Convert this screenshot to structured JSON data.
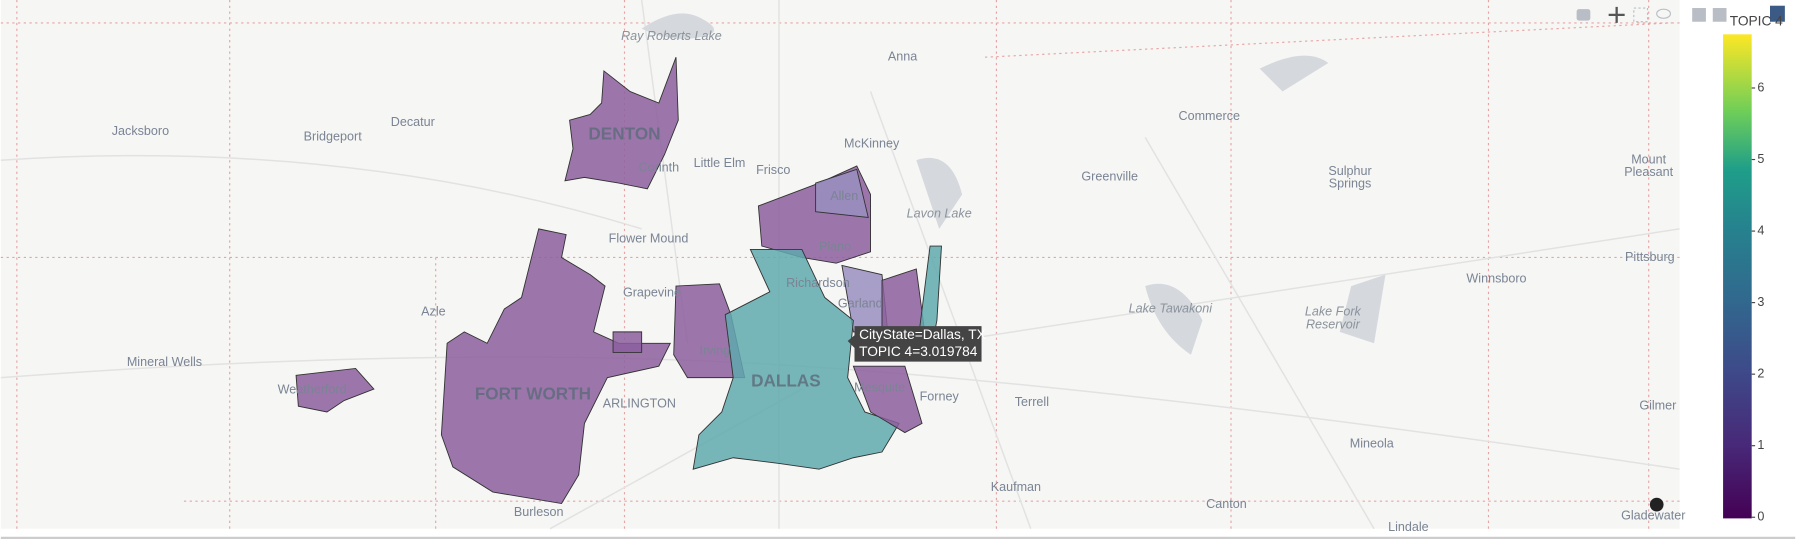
{
  "map": {
    "places": [
      [
        "Ray Roberts Lake"
      ],
      [
        "Anna"
      ],
      [
        "Jacksboro"
      ],
      [
        "Decatur"
      ],
      [
        "Bridgeport"
      ],
      [
        "DENTON"
      ],
      [
        "Corinth"
      ],
      [
        "Little Elm"
      ],
      [
        "Frisco"
      ],
      [
        "McKinney"
      ],
      [
        "Commerce"
      ],
      [
        "Greenville"
      ],
      [
        "Sulphur",
        "Springs"
      ],
      [
        "Mount",
        "Pleasant"
      ],
      [
        "Allen"
      ],
      [
        "Lavon Lake"
      ],
      [
        "Flower Mound"
      ],
      [
        "Plano"
      ],
      [
        "Pittsburg"
      ],
      [
        "Richardson"
      ],
      [
        "Winnsboro"
      ],
      [
        "Grapevine"
      ],
      [
        "Garland"
      ],
      [
        "Azle"
      ],
      [
        "Lake Tawakoni"
      ],
      [
        "Lake Fork",
        "Reservoir"
      ],
      [
        "Mineral Wells"
      ],
      [
        "Irving"
      ],
      [
        "Weatherford"
      ],
      [
        "FORT WORTH"
      ],
      [
        "ARLINGTON"
      ],
      [
        "DALLAS"
      ],
      [
        "Mesquite"
      ],
      [
        "Forney"
      ],
      [
        "Terrell"
      ],
      [
        "Gilmer"
      ],
      [
        "Mineola"
      ],
      [
        "Kaufman"
      ],
      [
        "Canton"
      ],
      [
        "Burleson"
      ],
      [
        "Lindale"
      ],
      [
        "Gladewater"
      ]
    ]
  },
  "colorbar": {
    "title": "TOPIC 4",
    "range": [
      0,
      6.75
    ],
    "ticks": [
      0,
      1,
      2,
      3,
      4,
      5,
      6
    ]
  },
  "tooltip": {
    "lines": [
      "CityState=Dallas, TX",
      "TOPIC 4=3.019784"
    ]
  }
}
